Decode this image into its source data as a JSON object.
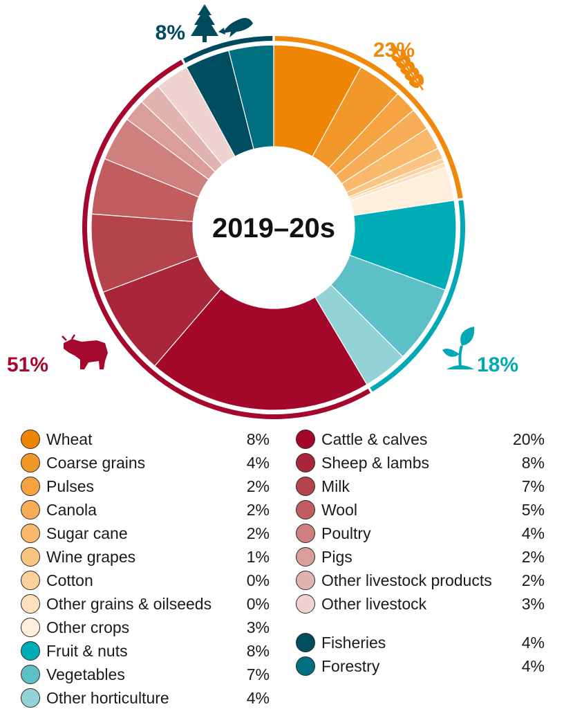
{
  "chart_data": {
    "type": "pie",
    "title": "2019–20s",
    "groups": [
      {
        "label": "23%",
        "value": 23,
        "color": "#f0880a",
        "icon": "wheat-icon"
      },
      {
        "label": "18%",
        "value": 18,
        "color": "#00a9b5",
        "icon": "seedling-icon"
      },
      {
        "label": "51%",
        "value": 51,
        "color": "#a5082c",
        "icon": "bull-icon"
      },
      {
        "label": "8%",
        "value": 8,
        "color": "#004a5e",
        "icon": "tree-and-fish-icon"
      }
    ],
    "slices": [
      {
        "name": "Wheat",
        "label": "8%",
        "value": 8,
        "color": "#ef8505",
        "group": 0
      },
      {
        "name": "Coarse grains",
        "label": "4%",
        "value": 4,
        "color": "#f2982a",
        "group": 0
      },
      {
        "name": "Pulses",
        "label": "2%",
        "value": 2,
        "color": "#f4a340",
        "group": 0
      },
      {
        "name": "Canola",
        "label": "2%",
        "value": 2,
        "color": "#f6ad55",
        "group": 0
      },
      {
        "name": "Sugar cane",
        "label": "2%",
        "value": 2,
        "color": "#f8b96a",
        "group": 0
      },
      {
        "name": "Wine grapes",
        "label": "1%",
        "value": 1,
        "color": "#fac583",
        "group": 0
      },
      {
        "name": "Cotton",
        "label": "0%",
        "value": 0.4,
        "color": "#fcd19b",
        "group": 0
      },
      {
        "name": "Other grains & oilseeds",
        "label": "0%",
        "value": 0.4,
        "color": "#fde0bd",
        "group": 0
      },
      {
        "name": "Other crops",
        "label": "3%",
        "value": 3,
        "color": "#feeedb",
        "group": 0
      },
      {
        "name": "Fruit & nuts",
        "label": "8%",
        "value": 8,
        "color": "#00adb7",
        "group": 1
      },
      {
        "name": "Vegetables",
        "label": "7%",
        "value": 7,
        "color": "#5ec0c7",
        "group": 1
      },
      {
        "name": "Other horticulture",
        "label": "4%",
        "value": 4,
        "color": "#93d2d7",
        "group": 1
      },
      {
        "name": "Cattle & calves",
        "label": "20%",
        "value": 20,
        "color": "#a3082b",
        "group": 2
      },
      {
        "name": "Sheep & lambs",
        "label": "8%",
        "value": 8,
        "color": "#a9263a",
        "group": 2
      },
      {
        "name": "Milk",
        "label": "7%",
        "value": 7,
        "color": "#b5434b",
        "group": 2
      },
      {
        "name": "Wool",
        "label": "5%",
        "value": 5,
        "color": "#c15d5e",
        "group": 2
      },
      {
        "name": "Poultry",
        "label": "4%",
        "value": 4,
        "color": "#cd807e",
        "group": 2
      },
      {
        "name": "Pigs",
        "label": "2%",
        "value": 2,
        "color": "#d99d9a",
        "group": 2
      },
      {
        "name": "Other livestock products",
        "label": "2%",
        "value": 2,
        "color": "#e2b4b1",
        "group": 2
      },
      {
        "name": "Other livestock",
        "label": "3%",
        "value": 3,
        "color": "#efd3d0",
        "group": 2
      },
      {
        "name": "Fisheries",
        "label": "4%",
        "value": 4,
        "color": "#004d5f",
        "group": 3
      },
      {
        "name": "Forestry",
        "label": "4%",
        "value": 4,
        "color": "#006f80",
        "group": 3
      }
    ]
  }
}
